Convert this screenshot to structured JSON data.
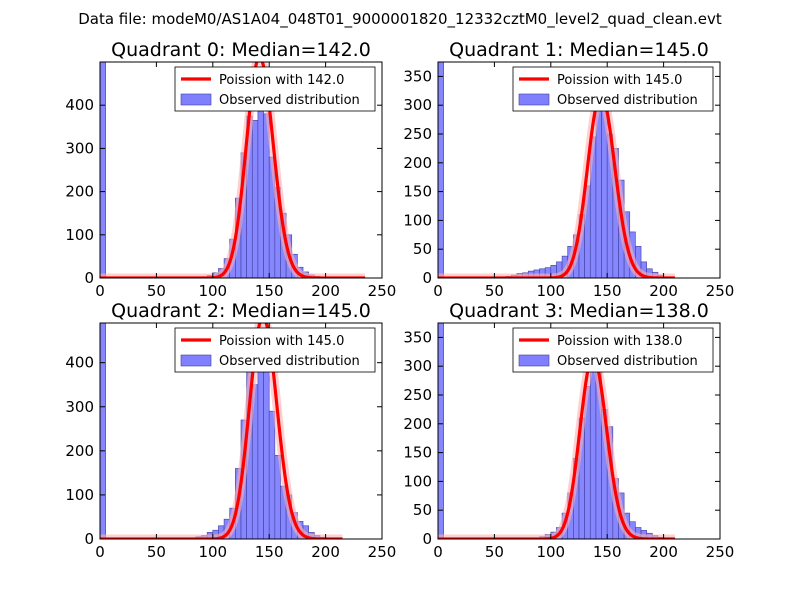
{
  "figure_title": "Data file: modeM0/AS1A04_048T01_9000001820_12332cztM0_level2_quad_clean.evt",
  "colors": {
    "bars": "#8080ff",
    "bar_edge": "#4040a0",
    "poisson": "#ff0000",
    "poisson_glow": "#ffb0b0"
  },
  "chart_data": [
    {
      "type": "bar",
      "title": "Quadrant 0: Median=142.0",
      "legend": [
        "Poission with 142.0",
        "Observed distribution"
      ],
      "xlim": [
        0,
        250
      ],
      "ylim": [
        0,
        500
      ],
      "xticks": [
        0,
        50,
        100,
        150,
        200,
        250
      ],
      "xtick_labels": [
        "0",
        "50",
        "100",
        "150",
        "200",
        "250"
      ],
      "yticks": [
        0,
        100,
        200,
        300,
        400
      ],
      "ytick_labels": [
        "0",
        "100",
        "200",
        "300",
        "400"
      ],
      "bin_width": 5,
      "bins": [
        0,
        85,
        90,
        95,
        100,
        105,
        110,
        115,
        120,
        125,
        130,
        135,
        140,
        145,
        150,
        155,
        160,
        165,
        170,
        175,
        180,
        185,
        190,
        195,
        200,
        205
      ],
      "values": [
        500,
        2,
        3,
        6,
        12,
        22,
        45,
        90,
        185,
        290,
        375,
        365,
        430,
        380,
        280,
        210,
        150,
        100,
        55,
        25,
        14,
        7,
        4,
        2,
        1,
        0
      ],
      "poisson_mu": 142.0,
      "poisson_scale": 5.0,
      "poisson_xmax": 235
    },
    {
      "type": "bar",
      "title": "Quadrant 1: Median=145.0",
      "legend": [
        "Poission with 145.0",
        "Observed distribution"
      ],
      "xlim": [
        0,
        250
      ],
      "ylim": [
        0,
        375
      ],
      "xticks": [
        0,
        50,
        100,
        150,
        200,
        250
      ],
      "xtick_labels": [
        "0",
        "50",
        "100",
        "150",
        "200",
        "250"
      ],
      "yticks": [
        0,
        50,
        100,
        150,
        200,
        250,
        300,
        350
      ],
      "ytick_labels": [
        "0",
        "50",
        "100",
        "150",
        "200",
        "250",
        "300",
        "350"
      ],
      "bin_width": 5,
      "bins": [
        0,
        60,
        65,
        70,
        75,
        80,
        85,
        90,
        95,
        100,
        105,
        110,
        115,
        120,
        125,
        130,
        135,
        140,
        145,
        150,
        155,
        160,
        165,
        170,
        175,
        180,
        185,
        190,
        195,
        200
      ],
      "values": [
        375,
        3,
        5,
        8,
        9,
        12,
        14,
        16,
        18,
        22,
        28,
        38,
        55,
        75,
        110,
        160,
        245,
        300,
        335,
        250,
        225,
        170,
        115,
        80,
        55,
        28,
        16,
        10,
        5,
        2
      ],
      "poisson_mu": 145.0,
      "poisson_scale": 4.0,
      "poisson_xmax": 210
    },
    {
      "type": "bar",
      "title": "Quadrant 2: Median=145.0",
      "legend": [
        "Poission with 145.0",
        "Observed distribution"
      ],
      "xlim": [
        0,
        250
      ],
      "ylim": [
        0,
        490
      ],
      "xticks": [
        0,
        50,
        100,
        150,
        200,
        250
      ],
      "xtick_labels": [
        "0",
        "50",
        "100",
        "150",
        "200",
        "250"
      ],
      "yticks": [
        0,
        100,
        200,
        300,
        400
      ],
      "ytick_labels": [
        "0",
        "100",
        "200",
        "300",
        "400"
      ],
      "bin_width": 5,
      "bins": [
        0,
        85,
        90,
        95,
        100,
        105,
        110,
        115,
        120,
        125,
        130,
        135,
        140,
        145,
        150,
        155,
        160,
        165,
        170,
        175,
        180,
        185,
        190,
        195,
        200,
        205
      ],
      "values": [
        490,
        5,
        8,
        15,
        20,
        30,
        45,
        70,
        160,
        270,
        380,
        350,
        450,
        380,
        290,
        190,
        120,
        100,
        60,
        40,
        30,
        15,
        8,
        4,
        2,
        1
      ],
      "poisson_mu": 145.0,
      "poisson_scale": 5.0,
      "poisson_xmax": 215
    },
    {
      "type": "bar",
      "title": "Quadrant 3: Median=138.0",
      "legend": [
        "Poission with 138.0",
        "Observed distribution"
      ],
      "xlim": [
        0,
        250
      ],
      "ylim": [
        0,
        375
      ],
      "xticks": [
        0,
        50,
        100,
        150,
        200,
        250
      ],
      "xtick_labels": [
        "0",
        "50",
        "100",
        "150",
        "200",
        "250"
      ],
      "yticks": [
        0,
        50,
        100,
        150,
        200,
        250,
        300,
        350
      ],
      "ytick_labels": [
        "0",
        "50",
        "100",
        "150",
        "200",
        "250",
        "300",
        "350"
      ],
      "bin_width": 5,
      "bins": [
        0,
        90,
        95,
        100,
        105,
        110,
        115,
        120,
        125,
        130,
        135,
        140,
        145,
        150,
        155,
        160,
        165,
        170,
        175,
        180,
        185,
        190,
        195,
        200,
        205
      ],
      "values": [
        375,
        4,
        8,
        12,
        20,
        45,
        80,
        140,
        210,
        265,
        355,
        290,
        225,
        195,
        105,
        80,
        45,
        30,
        20,
        15,
        10,
        6,
        3,
        2,
        1
      ],
      "poisson_mu": 138.0,
      "poisson_scale": 4.3,
      "poisson_xmax": 210
    }
  ]
}
